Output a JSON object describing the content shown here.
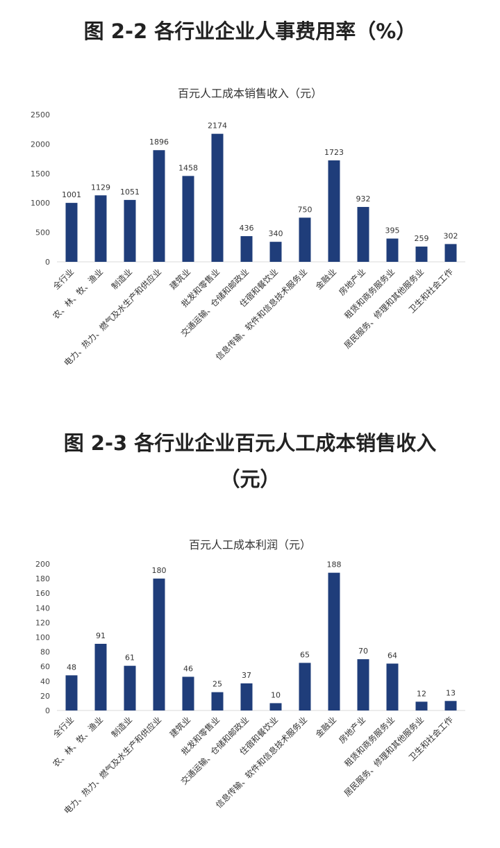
{
  "figures": {
    "fig1_title": "图 2-2 各行业企业人事费用率（%）",
    "fig2_title": "图 2-3 各行业企业百元人工成本销售收入（元）"
  },
  "chart_data": [
    {
      "type": "bar",
      "title": "百元人工成本销售收入（元）",
      "categories": [
        "全行业",
        "农、林、牧、渔业",
        "制造业",
        "电力、热力、燃气及水生产和供应业",
        "建筑业",
        "批发和零售业",
        "交通运输、仓储和邮政业",
        "住宿和餐饮业",
        "信息传输、软件和信息技术服务业",
        "金融业",
        "房地产业",
        "租赁和商务服务业",
        "居民服务、修理和其他服务业",
        "卫生和社会工作"
      ],
      "values": [
        1001,
        1129,
        1051,
        1896,
        1458,
        2174,
        436,
        340,
        750,
        1723,
        932,
        395,
        259,
        302
      ],
      "yticks": [
        0,
        500,
        1000,
        1500,
        2000,
        2500
      ],
      "ylim": [
        0,
        2500
      ],
      "grid": false,
      "bar_color": "#1f3d7a"
    },
    {
      "type": "bar",
      "title": "百元人工成本利润（元）",
      "categories": [
        "全行业",
        "农、林、牧、渔业",
        "制造业",
        "电力、热力、燃气及水生产和供应业",
        "建筑业",
        "批发和零售业",
        "交通运输、仓储和邮政业",
        "住宿和餐饮业",
        "信息传输、软件和信息技术服务业",
        "金融业",
        "房地产业",
        "租赁和商务服务业",
        "居民服务、修理和其他服务业",
        "卫生和社会工作"
      ],
      "values": [
        48,
        91,
        61,
        180,
        46,
        25,
        37,
        10,
        65,
        188,
        70,
        64,
        12,
        13
      ],
      "yticks": [
        0,
        20,
        40,
        60,
        80,
        100,
        120,
        140,
        160,
        180,
        200
      ],
      "ylim": [
        0,
        200
      ],
      "grid": false,
      "bar_color": "#1f3d7a"
    }
  ]
}
